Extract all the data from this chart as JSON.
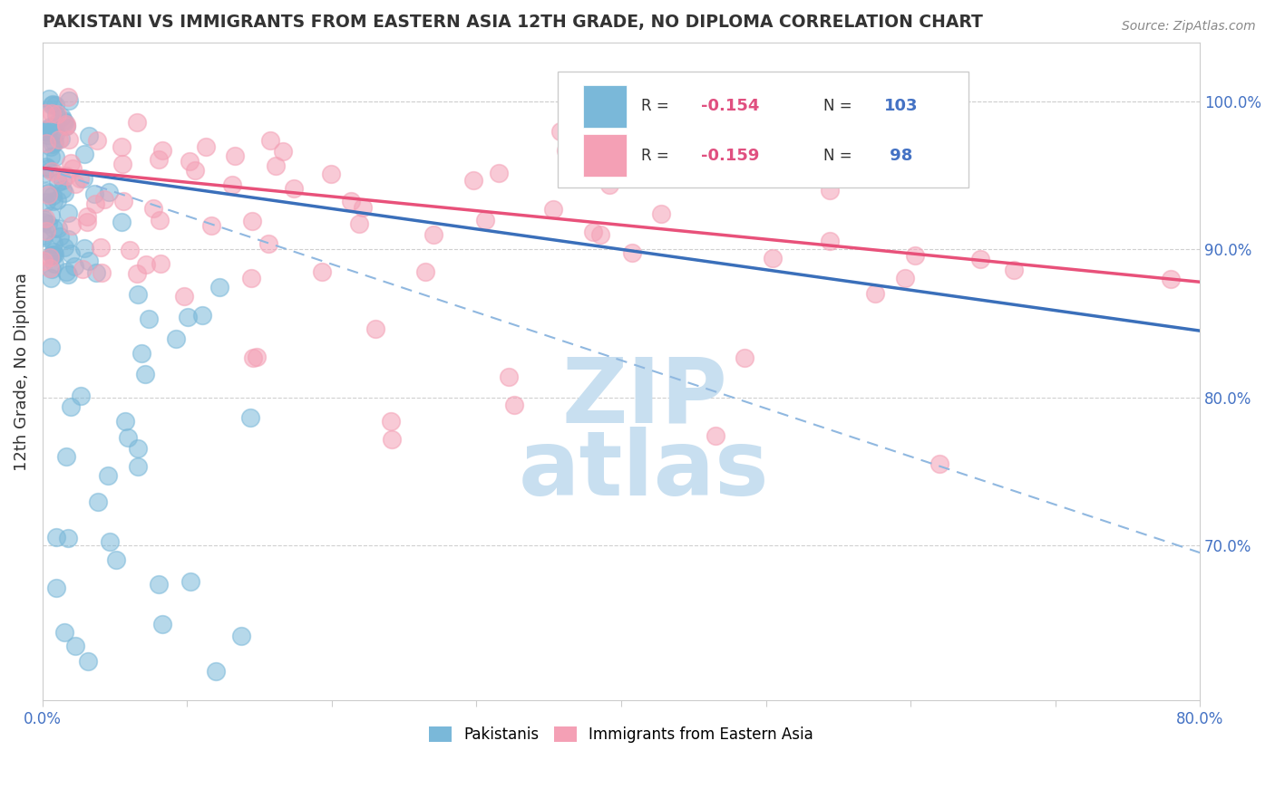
{
  "title": "PAKISTANI VS IMMIGRANTS FROM EASTERN ASIA 12TH GRADE, NO DIPLOMA CORRELATION CHART",
  "source_text": "Source: ZipAtlas.com",
  "ylabel": "12th Grade, No Diploma",
  "xlim": [
    0.0,
    0.8
  ],
  "ylim": [
    0.595,
    1.04
  ],
  "right_yticks": [
    0.7,
    0.8,
    0.9,
    1.0
  ],
  "right_yticklabels": [
    "70.0%",
    "80.0%",
    "90.0%",
    "100.0%"
  ],
  "xtick_positions": [
    0.0,
    0.1,
    0.2,
    0.3,
    0.4,
    0.5,
    0.6,
    0.7,
    0.8
  ],
  "xticklabels": [
    "0.0%",
    "",
    "",
    "",
    "",
    "",
    "",
    "",
    "80.0%"
  ],
  "blue_color": "#7ab8d9",
  "pink_color": "#f4a0b5",
  "blue_line_color": "#3a6fba",
  "pink_line_color": "#e8517a",
  "dashed_line_color": "#90b8e0",
  "watermark_color": "#c8dff0",
  "legend_box_color": "#cccccc",
  "text_color_blue": "#4472c4",
  "blue_line": {
    "x0": 0.0,
    "y0": 0.955,
    "x1": 0.8,
    "y1": 0.845
  },
  "pink_line": {
    "x0": 0.0,
    "y0": 0.955,
    "x1": 0.8,
    "y1": 0.878
  },
  "dash_line": {
    "x0": 0.0,
    "y0": 0.955,
    "x1": 0.8,
    "y1": 0.695
  },
  "grid_lines": [
    0.7,
    0.8,
    0.9,
    1.0
  ],
  "legend_r1": "-0.154",
  "legend_n1": "103",
  "legend_r2": "-0.159",
  "legend_n2": " 98"
}
